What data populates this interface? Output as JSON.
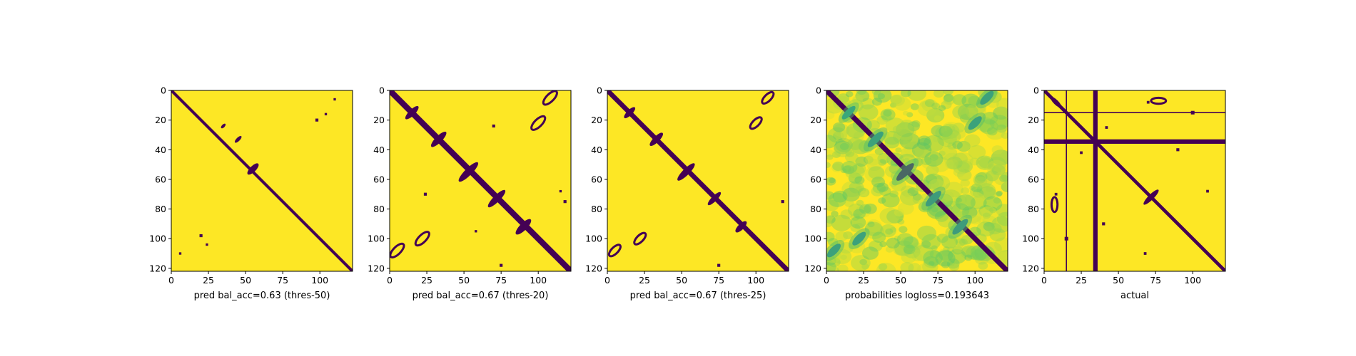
{
  "colors": {
    "background": "#fde725",
    "feature": "#440154",
    "colormap": "viridis"
  },
  "chart_data": [
    {
      "type": "heatmap",
      "xlabel": "pred bal_acc=0.63 (thres-50)",
      "x_ticks": [
        "0",
        "25",
        "50",
        "75",
        "100"
      ],
      "y_ticks": [
        "0",
        "20",
        "40",
        "60",
        "80",
        "100",
        "120"
      ],
      "xlim": [
        0,
        122
      ],
      "ylim": [
        122,
        0
      ],
      "binary": true,
      "features": [
        {
          "kind": "diagonal",
          "from": 0,
          "to": 122,
          "halfwidth": 1.4
        },
        {
          "kind": "ellipse",
          "cx": 55,
          "cy": 53,
          "rx": 5,
          "ry": 2,
          "angle": -45
        },
        {
          "kind": "ellipse",
          "cx": 45,
          "cy": 33,
          "rx": 3,
          "ry": 1.2,
          "angle": -45
        },
        {
          "kind": "ellipse",
          "cx": 35,
          "cy": 24,
          "rx": 2,
          "ry": 1,
          "angle": -45
        },
        {
          "kind": "blob",
          "x": 98,
          "y": 20,
          "r": 1.0
        },
        {
          "kind": "blob",
          "x": 104,
          "y": 16,
          "r": 0.8
        },
        {
          "kind": "blob",
          "x": 110,
          "y": 6,
          "r": 0.8
        },
        {
          "kind": "blob",
          "x": 20,
          "y": 98,
          "r": 1.0
        },
        {
          "kind": "blob",
          "x": 24,
          "y": 104,
          "r": 0.8
        },
        {
          "kind": "blob",
          "x": 6,
          "y": 110,
          "r": 0.8
        }
      ]
    },
    {
      "type": "heatmap",
      "xlabel": "pred bal_acc=0.67 (thres-20)",
      "x_ticks": [
        "0",
        "25",
        "50",
        "75",
        "100"
      ],
      "y_ticks": [
        "0",
        "20",
        "40",
        "60",
        "80",
        "100",
        "120"
      ],
      "xlim": [
        0,
        122
      ],
      "ylim": [
        122,
        0
      ],
      "binary": true,
      "features": [
        {
          "kind": "diagonal",
          "from": 0,
          "to": 122,
          "halfwidth": 2.8
        },
        {
          "kind": "ellipse",
          "cx": 53,
          "cy": 55,
          "rx": 9,
          "ry": 2.4,
          "angle": -45
        },
        {
          "kind": "ellipse",
          "cx": 72,
          "cy": 73,
          "rx": 8,
          "ry": 2.2,
          "angle": -45
        },
        {
          "kind": "ellipse",
          "cx": 90,
          "cy": 92,
          "rx": 7,
          "ry": 2.4,
          "angle": -45
        },
        {
          "kind": "ellipse",
          "cx": 33,
          "cy": 33,
          "rx": 7,
          "ry": 2.2,
          "angle": -45
        },
        {
          "kind": "ellipse",
          "cx": 15,
          "cy": 15,
          "rx": 6,
          "ry": 2,
          "angle": -45
        },
        {
          "kind": "ring",
          "cx": 108,
          "cy": 5,
          "rx": 6,
          "ry": 2.5,
          "angle": -45
        },
        {
          "kind": "ring",
          "cx": 100,
          "cy": 22,
          "rx": 6,
          "ry": 2.5,
          "angle": -45
        },
        {
          "kind": "ring",
          "cx": 5,
          "cy": 108,
          "rx": 6,
          "ry": 2.5,
          "angle": -45
        },
        {
          "kind": "ring",
          "cx": 22,
          "cy": 100,
          "rx": 6,
          "ry": 2.5,
          "angle": -45
        },
        {
          "kind": "blob",
          "x": 70,
          "y": 24,
          "r": 1.0
        },
        {
          "kind": "blob",
          "x": 118,
          "y": 75,
          "r": 1.0
        },
        {
          "kind": "blob",
          "x": 24,
          "y": 70,
          "r": 1.0
        },
        {
          "kind": "blob",
          "x": 75,
          "y": 118,
          "r": 1.0
        },
        {
          "kind": "blob",
          "x": 115,
          "y": 68,
          "r": 0.8
        },
        {
          "kind": "blob",
          "x": 58,
          "y": 95,
          "r": 0.8
        }
      ]
    },
    {
      "type": "heatmap",
      "xlabel": "pred bal_acc=0.67 (thres-25)",
      "x_ticks": [
        "0",
        "25",
        "50",
        "75",
        "100"
      ],
      "y_ticks": [
        "0",
        "20",
        "40",
        "60",
        "80",
        "100",
        "120"
      ],
      "xlim": [
        0,
        122
      ],
      "ylim": [
        122,
        0
      ],
      "binary": true,
      "features": [
        {
          "kind": "diagonal",
          "from": 0,
          "to": 122,
          "halfwidth": 2.3
        },
        {
          "kind": "ellipse",
          "cx": 53,
          "cy": 55,
          "rx": 8,
          "ry": 2.2,
          "angle": -45
        },
        {
          "kind": "ellipse",
          "cx": 72,
          "cy": 73,
          "rx": 6,
          "ry": 1.8,
          "angle": -45
        },
        {
          "kind": "ellipse",
          "cx": 90,
          "cy": 92,
          "rx": 5,
          "ry": 2.0,
          "angle": -45
        },
        {
          "kind": "ellipse",
          "cx": 33,
          "cy": 33,
          "rx": 6,
          "ry": 2.0,
          "angle": -45
        },
        {
          "kind": "ellipse",
          "cx": 15,
          "cy": 15,
          "rx": 5,
          "ry": 1.8,
          "angle": -45
        },
        {
          "kind": "ring",
          "cx": 108,
          "cy": 5,
          "rx": 5,
          "ry": 2.2,
          "angle": -45
        },
        {
          "kind": "ring",
          "cx": 100,
          "cy": 22,
          "rx": 5,
          "ry": 2.2,
          "angle": -45
        },
        {
          "kind": "ring",
          "cx": 5,
          "cy": 108,
          "rx": 5,
          "ry": 2.2,
          "angle": -45
        },
        {
          "kind": "ring",
          "cx": 22,
          "cy": 100,
          "rx": 5,
          "ry": 2.2,
          "angle": -45
        },
        {
          "kind": "blob",
          "x": 118,
          "y": 75,
          "r": 1.0
        },
        {
          "kind": "blob",
          "x": 75,
          "y": 118,
          "r": 1.0
        }
      ]
    },
    {
      "type": "heatmap",
      "xlabel": "probabilities logloss=0.193643",
      "x_ticks": [
        "0",
        "25",
        "50",
        "75",
        "100"
      ],
      "y_ticks": [
        "0",
        "20",
        "40",
        "60",
        "80",
        "100",
        "120"
      ],
      "xlim": [
        0,
        122
      ],
      "ylim": [
        122,
        0
      ],
      "binary": false,
      "features": [
        {
          "kind": "diagonal",
          "from": 0,
          "to": 122,
          "halfwidth": 2.4
        },
        {
          "kind": "soft_ellipse",
          "cx": 53,
          "cy": 55,
          "rx": 8,
          "ry": 2.5,
          "angle": -45,
          "level": 0.95
        },
        {
          "kind": "soft_ellipse",
          "cx": 72,
          "cy": 73,
          "rx": 7,
          "ry": 2.5,
          "angle": -45,
          "level": 0.6
        },
        {
          "kind": "soft_ellipse",
          "cx": 90,
          "cy": 92,
          "rx": 7,
          "ry": 2.5,
          "angle": -45,
          "level": 0.6
        },
        {
          "kind": "soft_ellipse",
          "cx": 33,
          "cy": 33,
          "rx": 7,
          "ry": 2.5,
          "angle": -45,
          "level": 0.55
        },
        {
          "kind": "soft_ellipse",
          "cx": 15,
          "cy": 15,
          "rx": 6,
          "ry": 2.2,
          "angle": -45,
          "level": 0.5
        },
        {
          "kind": "soft_ellipse",
          "cx": 108,
          "cy": 5,
          "rx": 6,
          "ry": 2.5,
          "angle": -45,
          "level": 0.55
        },
        {
          "kind": "soft_ellipse",
          "cx": 100,
          "cy": 22,
          "rx": 6,
          "ry": 2.5,
          "angle": -45,
          "level": 0.55
        },
        {
          "kind": "soft_ellipse",
          "cx": 5,
          "cy": 108,
          "rx": 6,
          "ry": 2.5,
          "angle": -45,
          "level": 0.55
        },
        {
          "kind": "soft_ellipse",
          "cx": 22,
          "cy": 100,
          "rx": 6,
          "ry": 2.5,
          "angle": -45,
          "level": 0.55
        }
      ]
    },
    {
      "type": "heatmap",
      "xlabel": "actual",
      "x_ticks": [
        "0",
        "25",
        "50",
        "75",
        "100"
      ],
      "y_ticks": [
        "0",
        "20",
        "40",
        "60",
        "80",
        "100",
        "120"
      ],
      "xlim": [
        0,
        122
      ],
      "ylim": [
        122,
        0
      ],
      "binary": true,
      "features": [
        {
          "kind": "diagonal",
          "from": 0,
          "to": 122,
          "halfwidth": 1.6
        },
        {
          "kind": "hband",
          "y0": 33,
          "y1": 36
        },
        {
          "kind": "vband",
          "x0": 33,
          "x1": 36
        },
        {
          "kind": "hline",
          "y": 15
        },
        {
          "kind": "vline",
          "x": 15
        },
        {
          "kind": "ellipse",
          "cx": 72,
          "cy": 72,
          "rx": 7,
          "ry": 1.8,
          "angle": -45
        },
        {
          "kind": "ellipse",
          "cx": 8,
          "cy": 8,
          "rx": 5,
          "ry": 1.6,
          "angle": 45
        },
        {
          "kind": "ring",
          "cx": 77,
          "cy": 7,
          "rx": 5,
          "ry": 2,
          "angle": 0
        },
        {
          "kind": "ring",
          "cx": 7,
          "cy": 77,
          "rx": 2,
          "ry": 5,
          "angle": 0
        },
        {
          "kind": "blob",
          "x": 100,
          "y": 15,
          "r": 1.2
        },
        {
          "kind": "blob",
          "x": 15,
          "y": 100,
          "r": 1.2
        },
        {
          "kind": "blob",
          "x": 90,
          "y": 40,
          "r": 1.0
        },
        {
          "kind": "blob",
          "x": 40,
          "y": 90,
          "r": 1.0
        },
        {
          "kind": "blob",
          "x": 110,
          "y": 68,
          "r": 0.9
        },
        {
          "kind": "blob",
          "x": 68,
          "y": 110,
          "r": 0.9
        },
        {
          "kind": "blob",
          "x": 25,
          "y": 42,
          "r": 0.9
        },
        {
          "kind": "blob",
          "x": 42,
          "y": 25,
          "r": 0.9
        },
        {
          "kind": "blob",
          "x": 8,
          "y": 70,
          "r": 0.9
        },
        {
          "kind": "blob",
          "x": 70,
          "y": 8,
          "r": 0.9
        }
      ]
    }
  ]
}
